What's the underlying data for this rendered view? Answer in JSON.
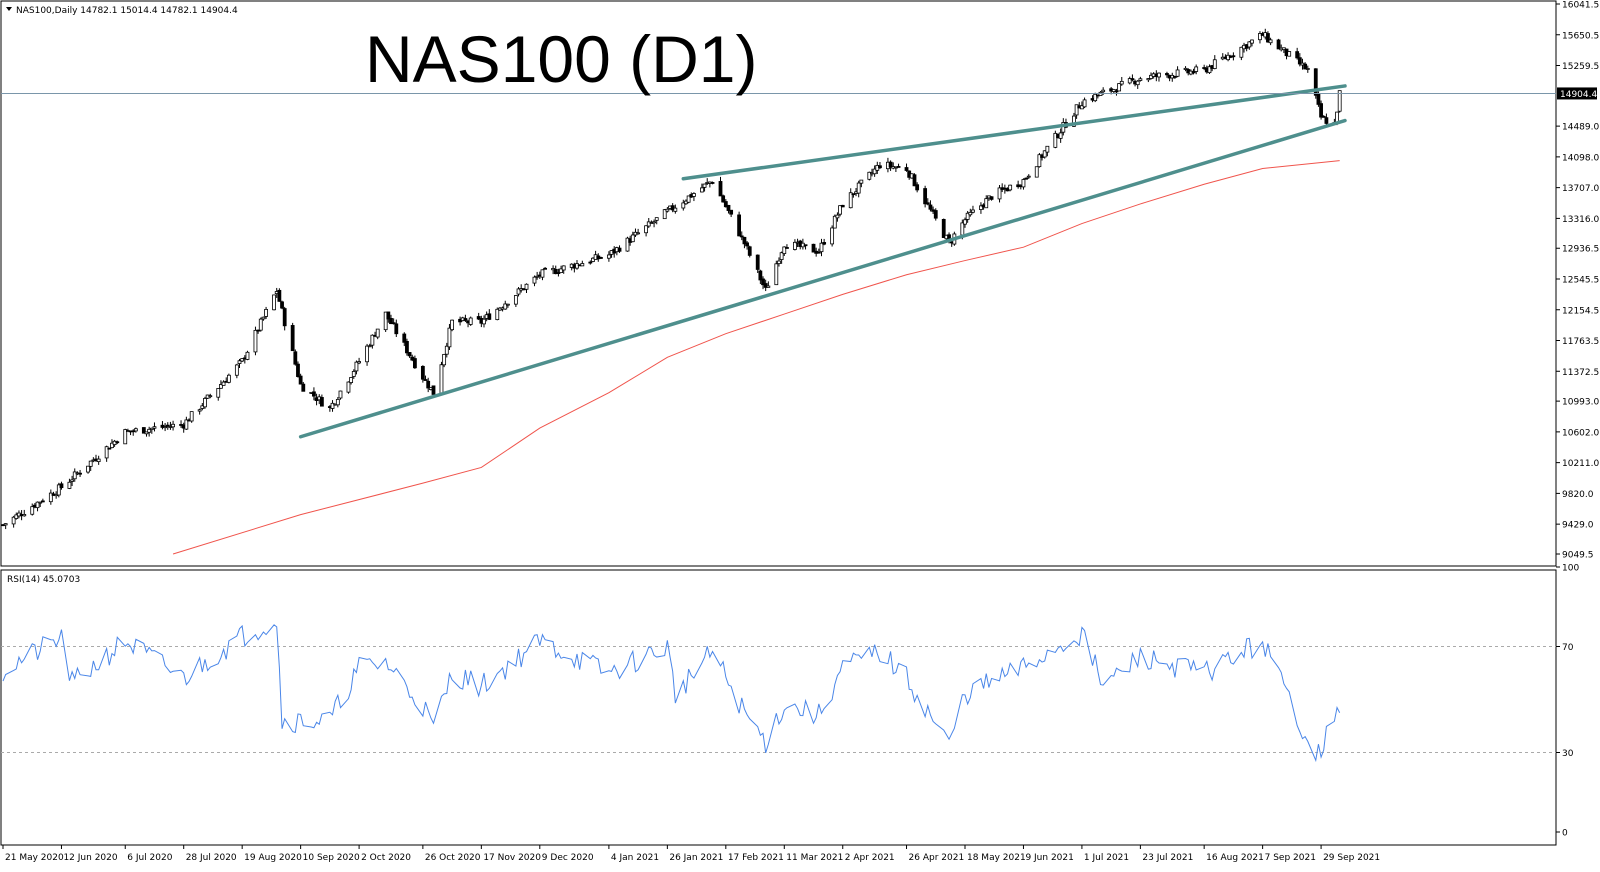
{
  "header": {
    "symbol_info": "NAS100,Daily  14782.1 15014.4 14782.1 14904.4",
    "title": "NAS100 (D1)"
  },
  "colors": {
    "bull": "#ffffff",
    "bear": "#000000",
    "wick": "#000000",
    "trendline": "#4e8f8d",
    "ma": "#f0544c",
    "rsi": "#4a86e8",
    "hline": "#7a96aa",
    "price_label_bg": "#000000"
  },
  "chart_data": [
    {
      "type": "candlestick",
      "symbol": "NAS100",
      "timeframe": "Daily",
      "ylim": [
        9049.5,
        16041.5
      ],
      "price_ticks": [
        "16041.5",
        "15650.5",
        "15259.5",
        "14904.4",
        "14489.0",
        "14098.0",
        "13707.0",
        "13316.0",
        "12936.5",
        "12545.5",
        "12154.5",
        "11763.5",
        "11372.5",
        "10993.0",
        "10602.0",
        "10211.0",
        "9820.0",
        "9429.0",
        "9049.5"
      ],
      "date_ticks": [
        "21 May 2020",
        "12 Jun 2020",
        "6 Jul 2020",
        "28 Jul 2020",
        "19 Aug 2020",
        "10 Sep 2020",
        "2 Oct 2020",
        "26 Oct 2020",
        "17 Nov 2020",
        "9 Dec 2020",
        "4 Jan 2021",
        "26 Jan 2021",
        "17 Feb 2021",
        "11 Mar 2021",
        "2 Apr 2021",
        "26 Apr 2021",
        "18 May 2021",
        "9 Jun 2021",
        "1 Jul 2021",
        "23 Jul 2021",
        "16 Aug 2021",
        "7 Sep 2021",
        "29 Sep 2021"
      ],
      "current_price": 14904.4,
      "close_path": [
        [
          "21 May 2020",
          9420
        ],
        [
          "12 Jun 2020",
          9900
        ],
        [
          "6 Jul 2020",
          10600
        ],
        [
          "28 Jul 2020",
          10700
        ],
        [
          "19 Aug 2020",
          11500
        ],
        [
          "1 Sep 2020",
          12400
        ],
        [
          "10 Sep 2020",
          11200
        ],
        [
          "21 Sep 2020",
          10900
        ],
        [
          "2 Oct 2020",
          11500
        ],
        [
          "12 Oct 2020",
          12100
        ],
        [
          "26 Oct 2020",
          11300
        ],
        [
          "30 Oct 2020",
          11100
        ],
        [
          "6 Nov 2020",
          12000
        ],
        [
          "17 Nov 2020",
          12000
        ],
        [
          "9 Dec 2020",
          12600
        ],
        [
          "4 Jan 2021",
          12850
        ],
        [
          "26 Jan 2021",
          13400
        ],
        [
          "12 Feb 2021",
          13800
        ],
        [
          "24 Feb 2021",
          13000
        ],
        [
          "4 Mar 2021",
          12400
        ],
        [
          "11 Mar 2021",
          13000
        ],
        [
          "24 Mar 2021",
          12900
        ],
        [
          "2 Apr 2021",
          13500
        ],
        [
          "16 Apr 2021",
          14000
        ],
        [
          "26 Apr 2021",
          13950
        ],
        [
          "12 May 2021",
          13000
        ],
        [
          "18 May 2021",
          13300
        ],
        [
          "28 May 2021",
          13600
        ],
        [
          "9 Jun 2021",
          13800
        ],
        [
          "1 Jul 2021",
          14800
        ],
        [
          "23 Jul 2021",
          15100
        ],
        [
          "16 Aug 2021",
          15200
        ],
        [
          "7 Sep 2021",
          15650
        ],
        [
          "24 Sep 2021",
          15200
        ],
        [
          "29 Sep 2021",
          14600
        ],
        [
          "4 Oct 2021",
          14500
        ],
        [
          "6 Oct 2021",
          14904.4
        ]
      ],
      "moving_average_path": [
        [
          "24 Jul 2020",
          9049.5
        ],
        [
          "10 Sep 2020",
          9550
        ],
        [
          "26 Oct 2020",
          9950
        ],
        [
          "17 Nov 2020",
          10150
        ],
        [
          "9 Dec 2020",
          10650
        ],
        [
          "4 Jan 2021",
          11100
        ],
        [
          "26 Jan 2021",
          11550
        ],
        [
          "17 Feb 2021",
          11850
        ],
        [
          "11 Mar 2021",
          12100
        ],
        [
          "2 Apr 2021",
          12350
        ],
        [
          "26 Apr 2021",
          12600
        ],
        [
          "18 May 2021",
          12780
        ],
        [
          "9 Jun 2021",
          12950
        ],
        [
          "1 Jul 2021",
          13250
        ],
        [
          "23 Jul 2021",
          13500
        ],
        [
          "16 Aug 2021",
          13750
        ],
        [
          "7 Sep 2021",
          13950
        ],
        [
          "6 Oct 2021",
          14050
        ]
      ],
      "trendlines": [
        {
          "from": [
            "10 Sep 2020",
            10540
          ],
          "to": [
            "8 Oct 2021",
            14560
          ]
        },
        {
          "from": [
            "1 Feb 2021",
            13820
          ],
          "to": [
            "8 Oct 2021",
            15000
          ]
        }
      ]
    },
    {
      "type": "line",
      "indicator": "RSI(14) 45.0703",
      "ylim": [
        0,
        100
      ],
      "ticks": [
        "100",
        "70",
        "30",
        "0"
      ],
      "levels": [
        70,
        30
      ],
      "rsi_path": [
        [
          "21 May 2020",
          61
        ],
        [
          "12 Jun 2020",
          73
        ],
        [
          "16 Jun 2020",
          56
        ],
        [
          "6 Jul 2020",
          72
        ],
        [
          "28 Jul 2020",
          58
        ],
        [
          "19 Aug 2020",
          74
        ],
        [
          "1 Sep 2020",
          80
        ],
        [
          "3 Sep 2020",
          42
        ],
        [
          "21 Sep 2020",
          42
        ],
        [
          "2 Oct 2020",
          62
        ],
        [
          "12 Oct 2020",
          64
        ],
        [
          "26 Oct 2020",
          48
        ],
        [
          "30 Oct 2020",
          39
        ],
        [
          "6 Nov 2020",
          60
        ],
        [
          "17 Nov 2020",
          55
        ],
        [
          "9 Dec 2020",
          72
        ],
        [
          "4 Jan 2021",
          60
        ],
        [
          "26 Jan 2021",
          70
        ],
        [
          "29 Jan 2021",
          52
        ],
        [
          "12 Feb 2021",
          68
        ],
        [
          "24 Feb 2021",
          45
        ],
        [
          "4 Mar 2021",
          34
        ],
        [
          "11 Mar 2021",
          48
        ],
        [
          "24 Mar 2021",
          44
        ],
        [
          "2 Apr 2021",
          62
        ],
        [
          "16 Apr 2021",
          68
        ],
        [
          "26 Apr 2021",
          58
        ],
        [
          "12 May 2021",
          33
        ],
        [
          "18 May 2021",
          52
        ],
        [
          "9 Jun 2021",
          62
        ],
        [
          "1 Jul 2021",
          75
        ],
        [
          "9 Jul 2021",
          55
        ],
        [
          "23 Jul 2021",
          66
        ],
        [
          "16 Aug 2021",
          60
        ],
        [
          "7 Sep 2021",
          72
        ],
        [
          "24 Sep 2021",
          35
        ],
        [
          "28 Sep 2021",
          30
        ],
        [
          "6 Oct 2021",
          45
        ]
      ]
    }
  ]
}
